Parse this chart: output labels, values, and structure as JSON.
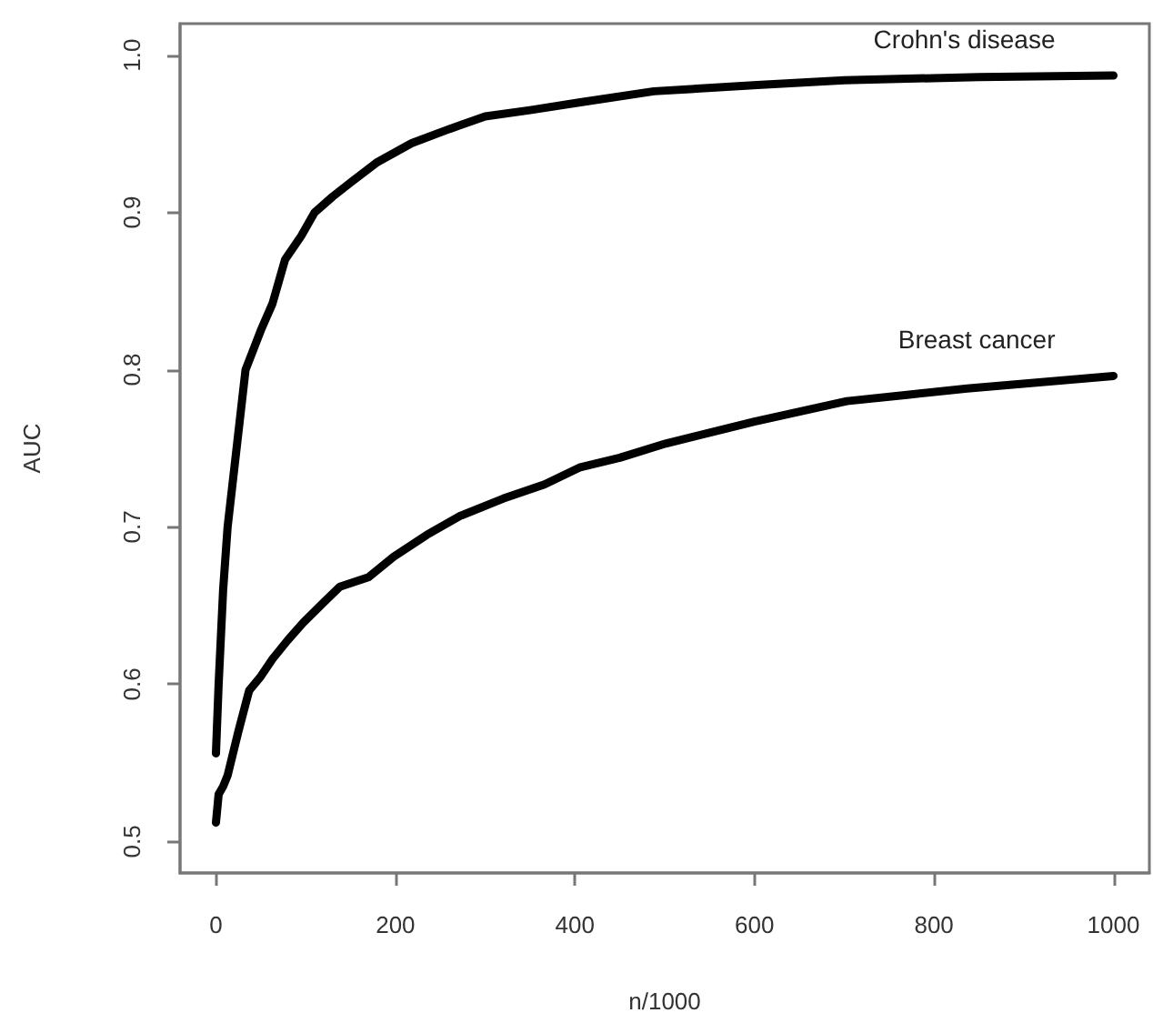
{
  "chart_data": {
    "type": "line",
    "xlabel": "n/1000",
    "ylabel": "AUC",
    "xlim": [
      -40,
      1040
    ],
    "ylim": [
      0.48,
      1.02
    ],
    "xticks": [
      0,
      200,
      400,
      600,
      800,
      1000
    ],
    "yticks": [
      0.5,
      0.6,
      0.7,
      0.8,
      0.9,
      {
        "value": 1,
        "label": "1.0"
      }
    ],
    "grid": false,
    "legend": false,
    "marker": "none",
    "line_style": "solid",
    "series": [
      {
        "name": "Crohn's disease",
        "color": "#000000",
        "x": [
          0,
          3,
          8,
          13,
          23,
          33,
          50,
          63,
          77,
          95,
          110,
          130,
          150,
          180,
          218,
          260,
          300,
          350,
          406,
          488,
          603,
          700,
          770,
          850,
          1000
        ],
        "values": [
          0.556,
          0.6,
          0.66,
          0.7,
          0.75,
          0.8,
          0.825,
          0.842,
          0.87,
          0.885,
          0.9,
          0.91,
          0.919,
          0.932,
          0.944,
          0.953,
          0.961,
          0.965,
          0.97,
          0.977,
          0.981,
          0.984,
          0.985,
          0.986,
          0.987
        ]
      },
      {
        "name": "Breast cancer",
        "color": "#000000",
        "x": [
          0,
          3,
          8,
          13,
          25,
          37,
          50,
          63,
          80,
          97,
          120,
          138,
          170,
          198,
          235,
          272,
          320,
          366,
          406,
          450,
          501,
          600,
          703,
          770,
          837,
          920,
          1000
        ],
        "values": [
          0.512,
          0.53,
          0.535,
          0.542,
          0.57,
          0.596,
          0.605,
          0.616,
          0.628,
          0.639,
          0.652,
          0.662,
          0.668,
          0.681,
          0.695,
          0.707,
          0.718,
          0.727,
          0.738,
          0.744,
          0.753,
          0.767,
          0.78,
          0.784,
          0.788,
          0.792,
          0.796
        ]
      }
    ]
  }
}
